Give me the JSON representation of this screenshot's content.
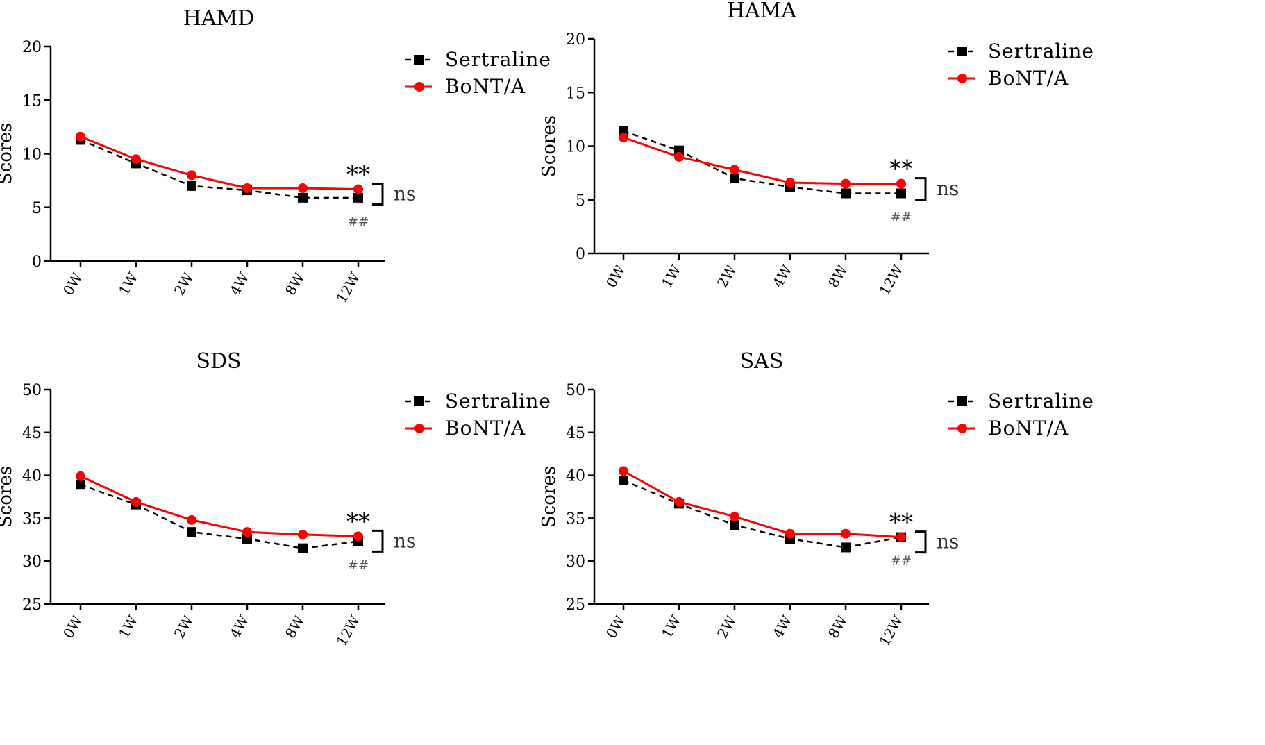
{
  "colors": {
    "sertraline": "#000000",
    "bont": "#ff0000",
    "axis": "#000000"
  },
  "legend": {
    "series_a": "Sertraline",
    "series_b": "BoNT/A"
  },
  "annotations": {
    "stars": "**",
    "ns": "ns",
    "hash": "##"
  },
  "chart_data": [
    {
      "type": "line",
      "title": "HAMD",
      "xlabel": "",
      "ylabel": "Scores",
      "categories": [
        "0W",
        "1W",
        "2W",
        "4W",
        "8W",
        "12W"
      ],
      "ylim": [
        0,
        20
      ],
      "yticks": [
        0,
        5,
        10,
        15,
        20
      ],
      "series": [
        {
          "name": "Sertraline",
          "values": [
            11.3,
            9.1,
            7.0,
            6.6,
            5.9,
            5.9
          ]
        },
        {
          "name": "BoNT/A",
          "values": [
            11.6,
            9.5,
            8.0,
            6.8,
            6.8,
            6.7
          ]
        }
      ]
    },
    {
      "type": "line",
      "title": "HAMA",
      "xlabel": "",
      "ylabel": "Scores",
      "categories": [
        "0W",
        "1W",
        "2W",
        "4W",
        "8W",
        "12W"
      ],
      "ylim": [
        0,
        20
      ],
      "yticks": [
        0,
        5,
        10,
        15,
        20
      ],
      "series": [
        {
          "name": "Sertraline",
          "values": [
            11.4,
            9.6,
            7.0,
            6.2,
            5.6,
            5.6
          ]
        },
        {
          "name": "BoNT/A",
          "values": [
            10.8,
            9.0,
            7.8,
            6.6,
            6.5,
            6.5
          ]
        }
      ]
    },
    {
      "type": "line",
      "title": "SDS",
      "xlabel": "",
      "ylabel": "Scores",
      "categories": [
        "0W",
        "1W",
        "2W",
        "4W",
        "8W",
        "12W"
      ],
      "ylim": [
        25,
        50
      ],
      "yticks": [
        25,
        30,
        35,
        40,
        45,
        50
      ],
      "series": [
        {
          "name": "Sertraline",
          "values": [
            38.9,
            36.6,
            33.4,
            32.6,
            31.5,
            32.3
          ]
        },
        {
          "name": "BoNT/A",
          "values": [
            39.9,
            36.9,
            34.8,
            33.4,
            33.1,
            32.9
          ]
        }
      ]
    },
    {
      "type": "line",
      "title": "SAS",
      "xlabel": "",
      "ylabel": "Scores",
      "categories": [
        "0W",
        "1W",
        "2W",
        "4W",
        "8W",
        "12W"
      ],
      "ylim": [
        25,
        50
      ],
      "yticks": [
        25,
        30,
        35,
        40,
        45,
        50
      ],
      "series": [
        {
          "name": "Sertraline",
          "values": [
            39.4,
            36.7,
            34.2,
            32.6,
            31.6,
            32.8
          ]
        },
        {
          "name": "BoNT/A",
          "values": [
            40.5,
            36.9,
            35.2,
            33.2,
            33.2,
            32.8
          ]
        }
      ]
    }
  ]
}
